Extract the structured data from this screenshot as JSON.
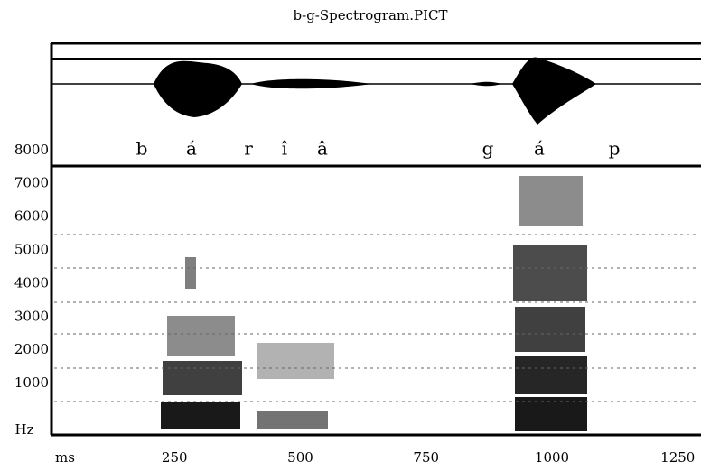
{
  "title": "b-g-Spectrogram.PICT",
  "phonemes": [
    "b",
    "á",
    "r",
    "î",
    "â",
    "g",
    "á",
    "p"
  ],
  "y_axis": {
    "unit": "Hz",
    "ticks": [
      8000,
      7000,
      6000,
      5000,
      4000,
      3000,
      2000,
      1000
    ]
  },
  "x_axis": {
    "unit": "ms",
    "ticks": [
      250,
      500,
      750,
      1000,
      1250
    ]
  }
}
